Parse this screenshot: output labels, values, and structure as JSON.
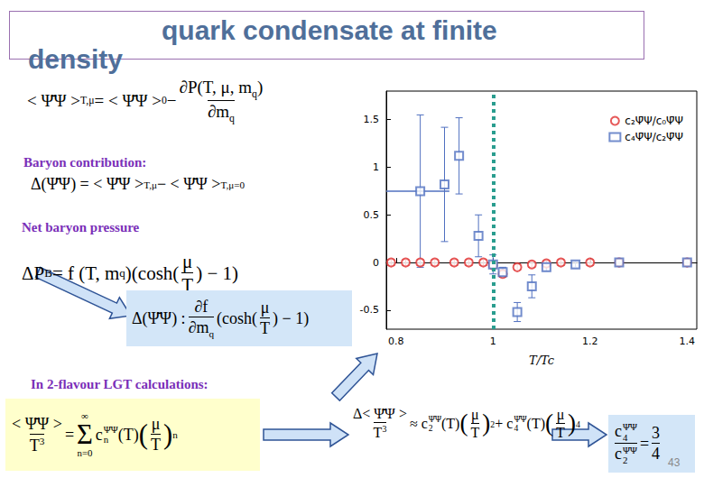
{
  "slide": {
    "title": [
      "quark condensate at finite",
      "density"
    ],
    "page": "43",
    "labels": {
      "baryon": "Baryon contribution:",
      "pressure": "Net baryon pressure",
      "lgt": "In 2-flavour LGT  calculations:"
    },
    "formulas": {
      "condensate": [
        "< Ψ̄Ψ >",
        {
          "sub": "T,μ"
        },
        " = < Ψ̄Ψ >",
        {
          "sub": "0"
        },
        " − ",
        {
          "frac": [
            [
              "∂P(T, μ, m",
              {
                "sub": "q"
              },
              ")"
            ],
            [
              "∂m",
              {
                "sub": "q"
              }
            ]
          ]
        }
      ],
      "delta": [
        "Δ(Ψ̄Ψ) = < Ψ̄Ψ >",
        {
          "sub": "T,μ"
        },
        " − < Ψ̄Ψ >",
        {
          "sub": "T,μ=0"
        }
      ],
      "pressure": [
        "ΔP",
        {
          "sup": "B"
        },
        " = f (T, m",
        {
          "sub": "q"
        },
        ")(cosh(",
        {
          "frac": [
            "μ",
            "T"
          ]
        },
        ") − 1)"
      ],
      "derivative": [
        "Δ(Ψ̄Ψ) : ",
        {
          "frac": [
            "∂f",
            [
              "∂m",
              {
                "sub": "q"
              }
            ]
          ]
        },
        "(cosh(",
        {
          "frac": [
            "μ",
            "T"
          ]
        },
        ") − 1)"
      ],
      "series": [
        {
          "frac": [
            "< Ψ̄Ψ >",
            [
              "T",
              {
                "sup": "3"
              }
            ]
          ]
        },
        " = ",
        {
          "op": "Σ",
          "under": "n=0",
          "over": "∞"
        },
        "c",
        {
          "subsup": [
            "n",
            "Ψ̄Ψ"
          ]
        },
        "(T)",
        {
          "big": "("
        },
        {
          "frac": [
            "μ",
            "T"
          ]
        },
        {
          "big": ")"
        },
        {
          "sup": "n"
        }
      ],
      "expansion": [
        {
          "frac": [
            "Δ< Ψ̄Ψ >",
            [
              "T",
              {
                "sup": "3"
              }
            ]
          ]
        },
        " ≈ c",
        {
          "subsup": [
            "2",
            "Ψ̄Ψ"
          ]
        },
        "(T)",
        {
          "big": "("
        },
        {
          "frac": [
            "μ",
            "T"
          ]
        },
        {
          "big": ")"
        },
        {
          "sup": "2"
        },
        " + c",
        {
          "subsup": [
            "4",
            "Ψ̄Ψ"
          ]
        },
        "(T)",
        {
          "big": "("
        },
        {
          "frac": [
            "μ",
            "T"
          ]
        },
        {
          "big": ")"
        },
        {
          "sup": "4"
        }
      ],
      "ratio": [
        {
          "frac": [
            [
              "c",
              {
                "subsup": [
                  "4",
                  "Ψ̄Ψ"
                ]
              }
            ],
            [
              "c",
              {
                "subsup": [
                  "2",
                  "Ψ̄Ψ"
                ]
              }
            ]
          ]
        },
        " = ",
        {
          "frac": [
            "3",
            "4"
          ]
        }
      ]
    }
  },
  "chart_data": {
    "type": "scatter",
    "xlabel": "T/Tc",
    "xlim": [
      0.78,
      1.42
    ],
    "xticks": [
      0.8,
      1,
      1.2,
      1.4
    ],
    "ylim": [
      -0.7,
      1.8
    ],
    "yticks": [
      -0.5,
      0,
      0.5,
      1,
      1.5
    ],
    "legend": "upper right",
    "grid": false,
    "vertical_line": {
      "x": 1,
      "color": "#2a9d8f"
    },
    "reference_line": {
      "y": 0.75,
      "x": [
        0.78,
        0.91
      ],
      "color": "#5070c0"
    },
    "series": [
      {
        "name": "c₂Ψ̄Ψ/c₀Ψ̄Ψ",
        "color": "#e03030",
        "marker": "circle",
        "x": [
          0.79,
          0.82,
          0.85,
          0.88,
          0.92,
          0.95,
          0.98,
          1.0,
          1.02,
          1.05,
          1.08,
          1.11,
          1.14,
          1.2,
          1.26,
          1.4
        ],
        "values": [
          0,
          0,
          0,
          0,
          0,
          0,
          0,
          -0.03,
          -0.12,
          -0.05,
          -0.02,
          -0.01,
          0,
          0,
          0,
          0
        ],
        "errors": [
          0.03,
          0.03,
          0.03,
          0.03,
          0.03,
          0.03,
          0.03,
          0.03,
          0.03,
          0.03,
          0.03,
          0.03,
          0.03,
          0.03,
          0.03,
          0.03
        ]
      },
      {
        "name": "c₄Ψ̄Ψ/c₂Ψ̄Ψ",
        "color": "#5070c0",
        "marker": "square",
        "x": [
          0.85,
          0.9,
          0.93,
          0.97,
          1.0,
          1.02,
          1.05,
          1.08,
          1.11,
          1.17,
          1.26,
          1.4
        ],
        "values": [
          0.75,
          0.82,
          1.12,
          0.28,
          -0.02,
          -0.1,
          -0.52,
          -0.25,
          -0.05,
          -0.02,
          0,
          0
        ],
        "errors": [
          0.8,
          0.6,
          0.4,
          0.22,
          0.1,
          0.05,
          0.1,
          0.12,
          0.04,
          0.03,
          0.02,
          0.02
        ]
      }
    ]
  }
}
